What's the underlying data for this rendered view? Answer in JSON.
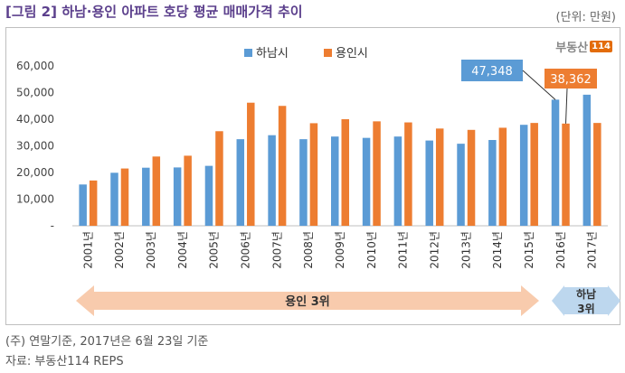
{
  "header": {
    "title": "[그림 2] 하남·용인 아파트 호당 평균 매매가격 추이",
    "unit": "(단위: 만원)"
  },
  "logo": {
    "text": "부동산",
    "box": "114"
  },
  "notes": {
    "line1": "(주) 연말기준, 2017년은 6월 23일 기준",
    "line2": "자료: 부동산114 REPS"
  },
  "colors": {
    "hanam": "#5b9bd5",
    "yongin": "#ed7d31",
    "arrow_left": "#f8cbad",
    "arrow_right": "#bdd7ee"
  },
  "chart_data": {
    "type": "bar",
    "categories": [
      "2001년",
      "2002년",
      "2003년",
      "2004년",
      "2005년",
      "2006년",
      "2007년",
      "2008년",
      "2009년",
      "2010년",
      "2011년",
      "2012년",
      "2013년",
      "2014년",
      "2015년",
      "2016년",
      "2017년"
    ],
    "series": [
      {
        "name": "하남시",
        "color": "#5b9bd5",
        "values": [
          15500,
          19900,
          21800,
          21900,
          22500,
          32500,
          34000,
          32500,
          33500,
          33000,
          33500,
          32000,
          30800,
          32200,
          37900,
          47348,
          49200
        ]
      },
      {
        "name": "용인시",
        "color": "#ed7d31",
        "values": [
          17000,
          21500,
          26000,
          26300,
          35500,
          46200,
          45000,
          38500,
          40000,
          39200,
          38800,
          36500,
          36000,
          36800,
          38600,
          38362,
          38600
        ]
      }
    ],
    "yticks": [
      "-",
      "10,000",
      "20,000",
      "30,000",
      "40,000",
      "50,000",
      "60,000"
    ],
    "ylim": [
      0,
      60000
    ],
    "grid": false,
    "legend": "top-center",
    "annotations": [
      {
        "text": "47,348",
        "series": "하남시",
        "category": "2016년",
        "color": "#5b9bd5"
      },
      {
        "text": "38,362",
        "series": "용인시",
        "category": "2016년",
        "color": "#ed7d31"
      }
    ],
    "ranges": [
      {
        "label": "용인 3위",
        "from": "2001년",
        "to": "2015년",
        "color": "#f8cbad"
      },
      {
        "label": "하남 3위",
        "from": "2016년",
        "to": "2017년",
        "color": "#bdd7ee"
      }
    ]
  }
}
